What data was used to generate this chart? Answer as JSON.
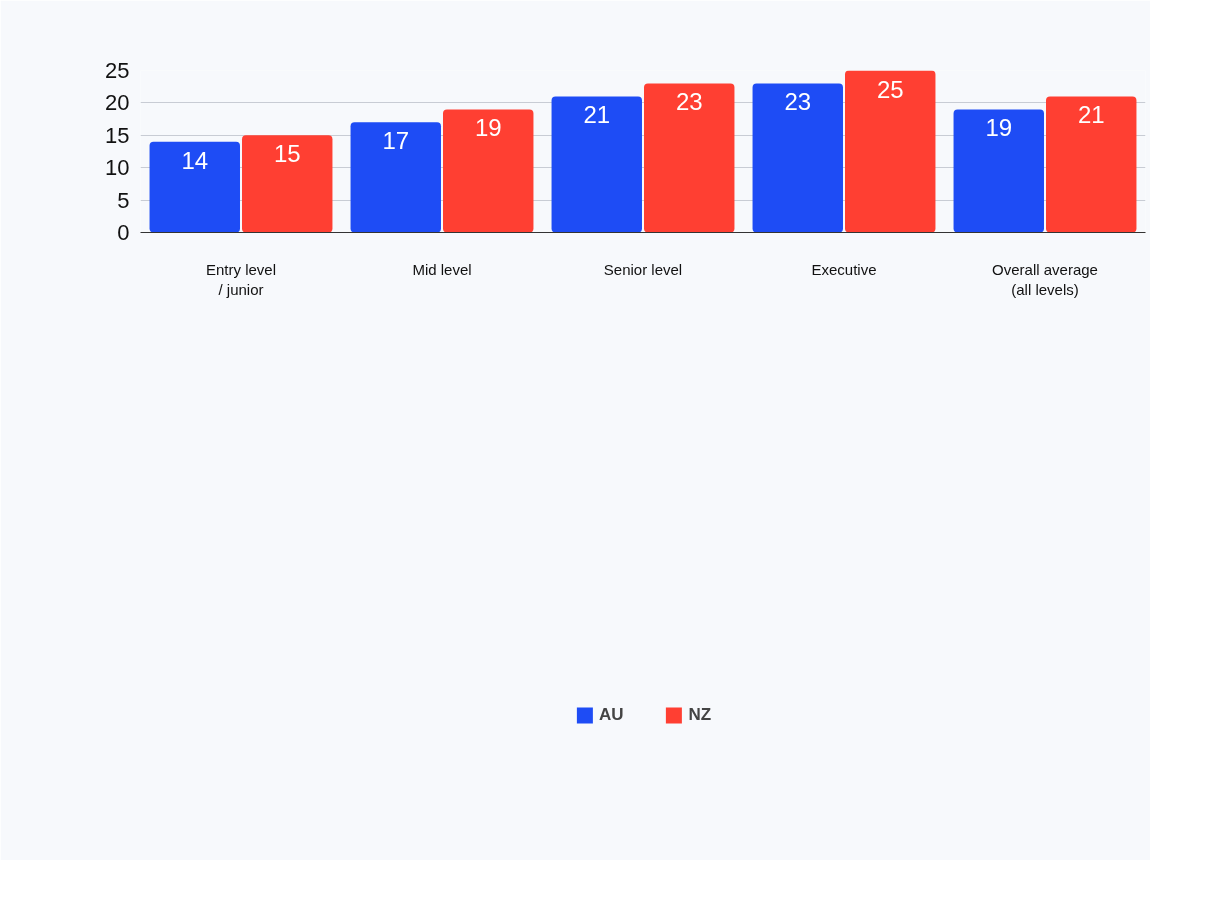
{
  "chart_data": {
    "type": "bar",
    "categories": [
      "Entry level\n/ junior",
      "Mid level",
      "Senior level",
      "Executive",
      "Overall average\n(all levels)"
    ],
    "series": [
      {
        "name": "AU",
        "color": "#1e4cf5",
        "values": [
          14,
          17,
          21,
          23,
          19
        ]
      },
      {
        "name": "NZ",
        "color": "#ff3f32",
        "values": [
          15,
          19,
          23,
          25,
          21
        ]
      }
    ],
    "ylim": [
      0,
      25
    ],
    "yticks": [
      0,
      5,
      10,
      15,
      20,
      25
    ],
    "grid": "y",
    "legend": "bottom",
    "data_labels": true
  }
}
